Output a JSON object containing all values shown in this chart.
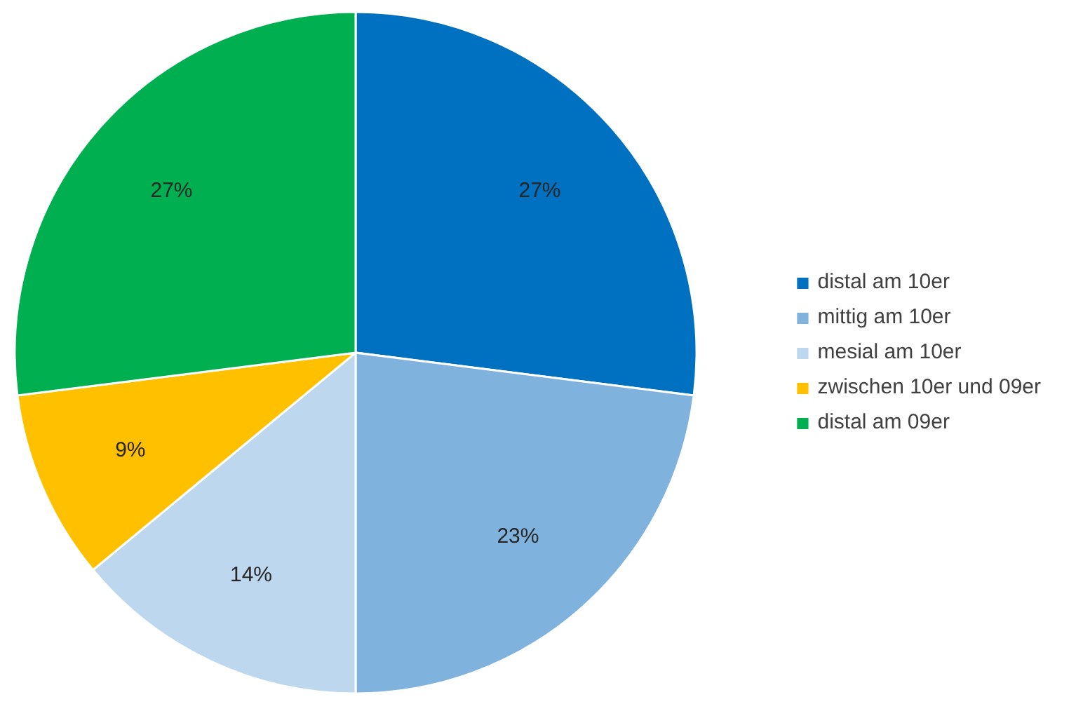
{
  "chart_data": {
    "type": "pie",
    "categories": [
      "distal am 10er",
      "mittig am 10er",
      "mesial am 10er",
      "zwischen 10er und 09er",
      "distal am 09er"
    ],
    "values": [
      27,
      23,
      14,
      9,
      27
    ],
    "colors": [
      "#0070c0",
      "#7fb3de",
      "#bdd7ee",
      "#ffc000",
      "#00b050"
    ],
    "value_labels": [
      "27%",
      "23%",
      "14%",
      "9%",
      "27%"
    ],
    "legend": "right"
  }
}
